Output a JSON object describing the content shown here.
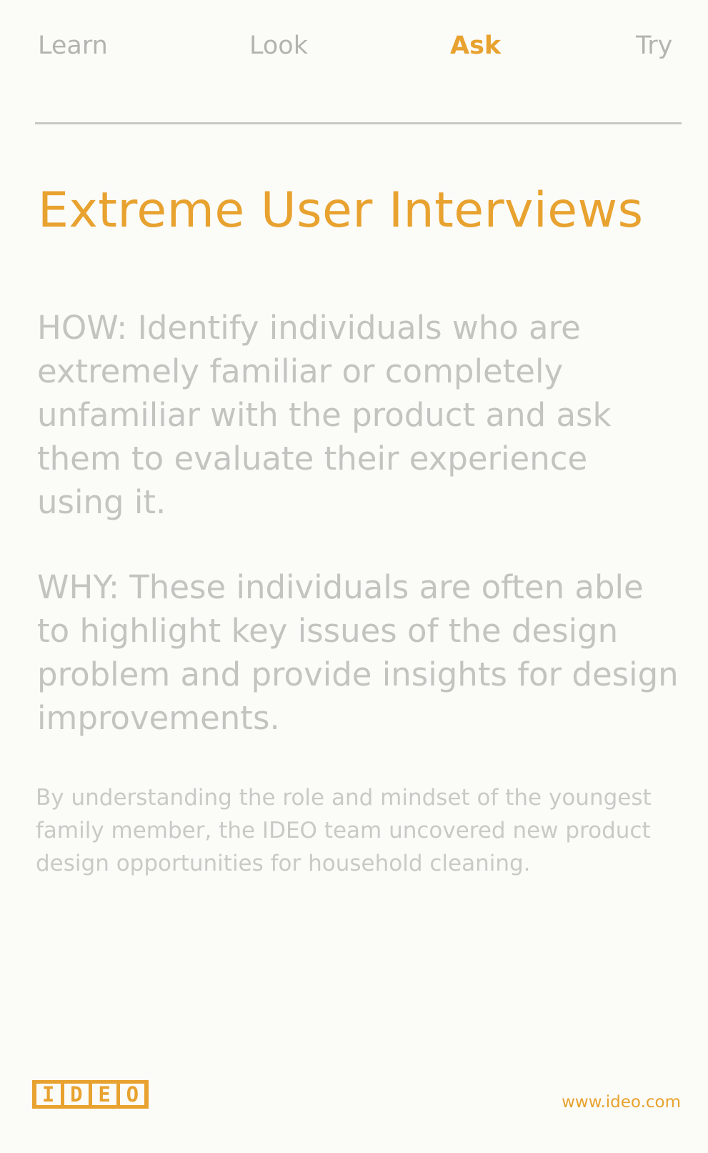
{
  "nav": {
    "items": [
      {
        "label": "Learn",
        "active": false
      },
      {
        "label": "Look",
        "active": false
      },
      {
        "label": "Ask",
        "active": true
      },
      {
        "label": "Try",
        "active": false
      }
    ]
  },
  "card": {
    "title": "Extreme User Interviews",
    "how": "HOW: Identify individuals who are extremely familiar or completely unfamiliar with the product and ask them to evaluate their experience using it.",
    "why": "WHY: These individuals are often able to highlight key issues of the design problem and provide insights for design improvements.",
    "caption": "By understanding the role and mindset of the youngest family member, the IDEO team uncovered new product design opportunities for household cleaning."
  },
  "footer": {
    "logo": "IDEO",
    "url": "www.ideo.com"
  },
  "colors": {
    "accent": "#e8a22f",
    "body_text": "#c3c3c0",
    "background": "#fbfbf8"
  }
}
